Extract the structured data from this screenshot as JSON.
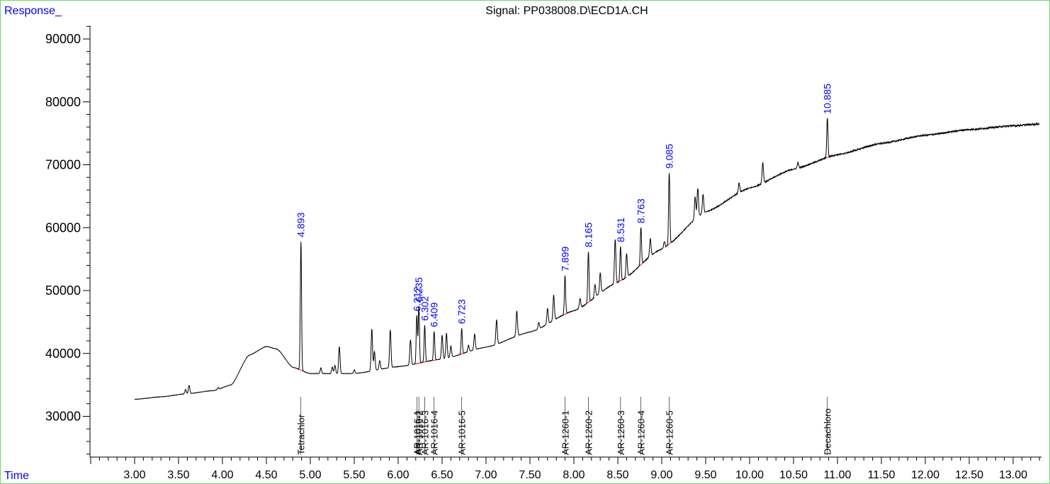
{
  "chart_data": {
    "type": "line",
    "title": "Signal: PP038008.D\\ECD1A.CH",
    "ylabel": "Response_",
    "xlabel": "Time",
    "xlim": [
      2.5,
      13.3
    ],
    "ylim": [
      23500,
      94500
    ],
    "x_ticks": [
      "3.00",
      "3.50",
      "4.00",
      "4.50",
      "5.00",
      "5.50",
      "6.00",
      "6.50",
      "7.00",
      "7.50",
      "8.00",
      "8.50",
      "9.00",
      "9.50",
      "10.00",
      "10.50",
      "11.00",
      "11.50",
      "12.00",
      "12.50",
      "13.00"
    ],
    "y_ticks": [
      "30000",
      "40000",
      "50000",
      "60000",
      "70000",
      "80000",
      "90000"
    ],
    "peak_labels": [
      {
        "text": "4.893",
        "x": 4.893,
        "y": 57800
      },
      {
        "text": "6.212",
        "x": 6.212,
        "y": 46000
      },
      {
        "text": "6.235",
        "x": 6.235,
        "y": 47500
      },
      {
        "text": "6.302",
        "x": 6.302,
        "y": 44500
      },
      {
        "text": "6.409",
        "x": 6.409,
        "y": 43500
      },
      {
        "text": "6.723",
        "x": 6.723,
        "y": 44000
      },
      {
        "text": "7.899",
        "x": 7.899,
        "y": 52400
      },
      {
        "text": "8.165",
        "x": 8.165,
        "y": 56200
      },
      {
        "text": "8.531",
        "x": 8.531,
        "y": 57000
      },
      {
        "text": "8.763",
        "x": 8.763,
        "y": 60000
      },
      {
        "text": "9.085",
        "x": 9.085,
        "y": 68700
      },
      {
        "text": "10.885",
        "x": 10.885,
        "y": 77400
      }
    ],
    "compound_labels": [
      {
        "text": "Tetrachlor",
        "x": 4.893
      },
      {
        "text": "AR-1016-1",
        "x": 6.212
      },
      {
        "text": "AR-1016-2",
        "x": 6.235
      },
      {
        "text": "AR-1016-3",
        "x": 6.302
      },
      {
        "text": "AR-1016-4",
        "x": 6.409
      },
      {
        "text": "AR-1016-5",
        "x": 6.723
      },
      {
        "text": "AR-1260-1",
        "x": 7.899
      },
      {
        "text": "AR-1260-2",
        "x": 8.165
      },
      {
        "text": "AR-1260-3",
        "x": 8.531
      },
      {
        "text": "AR-1260-4",
        "x": 8.763
      },
      {
        "text": "AR-1260-5",
        "x": 9.085
      },
      {
        "text": "Decachloro",
        "x": 10.885
      }
    ],
    "baseline_points": [
      [
        3.0,
        32700
      ],
      [
        3.3,
        33100
      ],
      [
        3.6,
        33600
      ],
      [
        3.9,
        34100
      ],
      [
        4.1,
        35000
      ],
      [
        4.3,
        39700
      ],
      [
        4.5,
        41100
      ],
      [
        4.62,
        40700
      ],
      [
        4.8,
        37800
      ],
      [
        5.0,
        36800
      ],
      [
        5.5,
        36800
      ],
      [
        6.0,
        37900
      ],
      [
        6.5,
        39100
      ],
      [
        7.0,
        41000
      ],
      [
        7.5,
        43400
      ],
      [
        8.0,
        46800
      ],
      [
        8.5,
        51300
      ],
      [
        9.0,
        56600
      ],
      [
        9.5,
        62500
      ],
      [
        10.0,
        66300
      ],
      [
        10.5,
        69300
      ],
      [
        11.0,
        71600
      ],
      [
        11.5,
        73400
      ],
      [
        12.0,
        74700
      ],
      [
        12.5,
        75600
      ],
      [
        13.0,
        76200
      ],
      [
        13.3,
        76500
      ]
    ],
    "minor_peaks": [
      [
        3.58,
        700
      ],
      [
        3.62,
        1300
      ],
      [
        3.95,
        300
      ],
      [
        5.12,
        900
      ],
      [
        5.25,
        1000
      ],
      [
        5.28,
        1300
      ],
      [
        5.33,
        4300
      ],
      [
        5.5,
        600
      ],
      [
        5.7,
        6700
      ],
      [
        5.73,
        3000
      ],
      [
        5.79,
        1400
      ],
      [
        5.91,
        6000
      ],
      [
        6.14,
        4000
      ],
      [
        6.5,
        3800
      ],
      [
        6.55,
        4000
      ],
      [
        6.6,
        1800
      ],
      [
        6.8,
        1000
      ],
      [
        6.87,
        2500
      ],
      [
        7.12,
        3900
      ],
      [
        7.35,
        4000
      ],
      [
        7.6,
        1000
      ],
      [
        7.7,
        2500
      ],
      [
        7.77,
        4000
      ],
      [
        8.07,
        1500
      ],
      [
        8.24,
        2000
      ],
      [
        8.3,
        3200
      ],
      [
        8.47,
        7000
      ],
      [
        8.6,
        3800
      ],
      [
        8.87,
        2800
      ],
      [
        9.03,
        1000
      ],
      [
        9.38,
        3500
      ],
      [
        9.41,
        4500
      ],
      [
        9.47,
        3000
      ],
      [
        9.88,
        1500
      ],
      [
        10.15,
        3300
      ],
      [
        10.55,
        900
      ]
    ]
  }
}
